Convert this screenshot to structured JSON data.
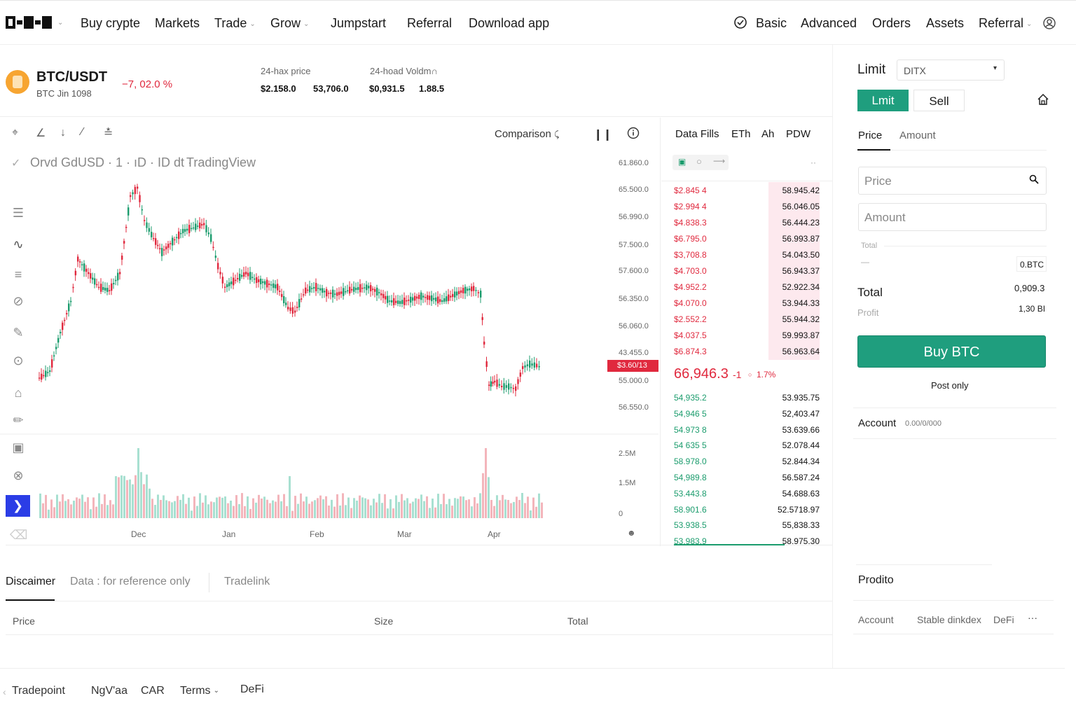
{
  "nav": {
    "left": [
      "Buy crypte",
      "Markets",
      "Trade",
      "Grow",
      "Jumpstart",
      "Referral",
      "Download app"
    ],
    "right": [
      "Basic",
      "Advanced",
      "Orders",
      "Assets",
      "Referral"
    ]
  },
  "ticker": {
    "pair": "BTC/USDT",
    "sub": "BTC Jin 1098",
    "change": "−7, 02.0 %",
    "stat1_label": "24-hax price",
    "stat1_v1": "$2.158.0",
    "stat1_v2": "53,706.0",
    "stat2_label": "24-hoad Voldm∩",
    "stat2_v1": "$0,931.5",
    "stat2_v2": "1.88.5"
  },
  "chart_toolbar": {
    "comparison": "Comparison",
    "legend": "Orvd GdUSD · 1 · ıD · ID dt ·",
    "legend_source": "TradingView"
  },
  "chart": {
    "y_labels": [
      "61.860.0",
      "65.500.0",
      "56.990.0",
      "57.500.0",
      "57.600.0",
      "56.350.0",
      "56.060.0",
      "43.455.0",
      "55.000.0",
      "56.550.0"
    ],
    "price_tag": "$3.60/13",
    "vol_labels": [
      "2.5M",
      "1.5M",
      "0"
    ],
    "x_labels": [
      "Dec",
      "Jan",
      "Feb",
      "Mar",
      "Apr"
    ]
  },
  "orderbook": {
    "tabs": [
      "Data Fills",
      "ETh",
      "Ah",
      "PDW"
    ],
    "asks": [
      [
        "$2.845 4",
        "58.945.42"
      ],
      [
        "$2.994 4",
        "56.046.05"
      ],
      [
        "$4.838.3",
        "56.444.23"
      ],
      [
        "$6.795.0",
        "56.993.87"
      ],
      [
        "$3,708.8",
        "54.043.50"
      ],
      [
        "$4.703.0",
        "56.943.37"
      ],
      [
        "$4.952.2",
        "52.922.34"
      ],
      [
        "$4.070.0",
        "53.944.33"
      ],
      [
        "$2.552.2",
        "55.944.32"
      ],
      [
        "$4.037.5",
        "59.993.87"
      ],
      [
        "$6.874.3",
        "56.963.64"
      ]
    ],
    "mid_price": "66,946.3",
    "mid_suffix": "-1",
    "mid_change": "1.7%",
    "bids": [
      [
        "54,935.2",
        "53.935.75"
      ],
      [
        "54,946 5",
        "52,403.47"
      ],
      [
        "54.973 8",
        "53.639.66"
      ],
      [
        "54 635 5",
        "52.078.44"
      ],
      [
        "58.978.0",
        "52.844.34"
      ],
      [
        "54,989.8",
        "56.587.24"
      ],
      [
        "53.443.8",
        "54.688.63"
      ],
      [
        "58.901.6",
        "52.5718.97"
      ],
      [
        "53.938.5",
        "55,838.33"
      ],
      [
        "53.983.9",
        "58.975.30"
      ]
    ]
  },
  "trade_panel": {
    "order_type": "Limit",
    "select_value": "DITX",
    "btn_buy": "Lmit",
    "btn_sell": "Sell",
    "tab_price": "Price",
    "tab_amount": "Amount",
    "price_placeholder": "Price",
    "amount_placeholder": "Amount",
    "total_small": "Total",
    "dash": "—",
    "btc_value": "0.BTC",
    "total_label": "Total",
    "total_value": "0,909.3",
    "profit_label": "Profit",
    "profit_value": "1,30 BI",
    "buy_button": "Buy BTC",
    "post_only": "Post only",
    "account_label": "Account",
    "account_value": "0.00/0/000",
    "prodito": "Prodito",
    "bottom_tabs": [
      "Account",
      "Stable dinkdex",
      "DeFi"
    ],
    "more": "···"
  },
  "bottom": {
    "tabs": [
      "Discaimer",
      "Data : for reference only",
      "Tradelink"
    ],
    "cols": [
      "Price",
      "Size",
      "Total"
    ]
  },
  "footer": [
    "Tradepoint",
    "NgV'aa",
    "CAR",
    "Terms",
    "DeFi"
  ],
  "colors": {
    "accent": "#1f9e7e",
    "up": "#1b9c6d",
    "down": "#e0293e",
    "selected_tool": "#2b3de6"
  }
}
